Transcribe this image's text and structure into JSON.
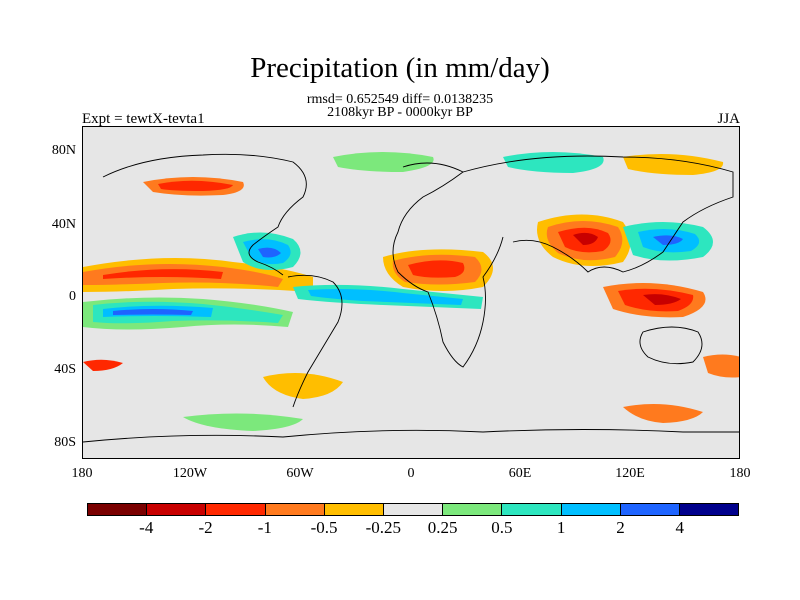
{
  "title": "Precipitation (in mm/day)",
  "stats_line": "rmsd= 0.652549 diff= 0.0138235",
  "period_line": "2108kyr BP - 0000kyr BP",
  "experiment_label": "Expt = tewtX-tevta1",
  "season_label": "JJA",
  "y_axis_labels": [
    "80N",
    "40N",
    "0",
    "40S",
    "80S"
  ],
  "x_axis_labels": [
    "180",
    "120W",
    "60W",
    "0",
    "60E",
    "120E",
    "180"
  ],
  "colorbar": {
    "colors": [
      "#7a0000",
      "#c80000",
      "#ff2800",
      "#ff7a1e",
      "#ffbe00",
      "#e6e6e6",
      "#7ce87c",
      "#2de6bf",
      "#00bfff",
      "#1e64ff",
      "#00008c"
    ],
    "labels": [
      "-4",
      "-2",
      "-1",
      "-0.5",
      "-0.25",
      "0.25",
      "0.5",
      "1",
      "2",
      "4"
    ]
  }
}
